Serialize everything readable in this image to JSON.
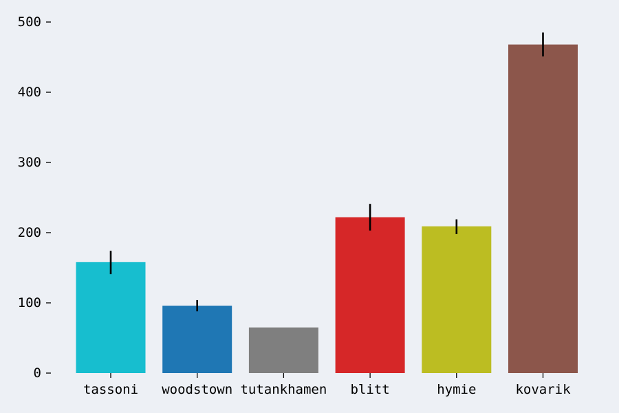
{
  "chart_data": {
    "type": "bar",
    "categories": [
      "tassoni",
      "woodstown",
      "tutankhamen",
      "blitt",
      "hymie",
      "kovarik"
    ],
    "values": [
      158,
      96,
      65,
      222,
      209,
      468
    ],
    "errors": [
      [
        141,
        174
      ],
      [
        88,
        104
      ],
      null,
      [
        203,
        241
      ],
      [
        198,
        219
      ],
      [
        451,
        485
      ]
    ],
    "colors": [
      "#17becf",
      "#1f77b4",
      "#7f7f7f",
      "#d62728",
      "#bcbd22",
      "#8c564b"
    ],
    "ylim": [
      0,
      520
    ],
    "yticks": [
      0,
      100,
      200,
      300,
      400,
      500
    ],
    "grid": false,
    "title": "",
    "xlabel": "",
    "ylabel": ""
  }
}
